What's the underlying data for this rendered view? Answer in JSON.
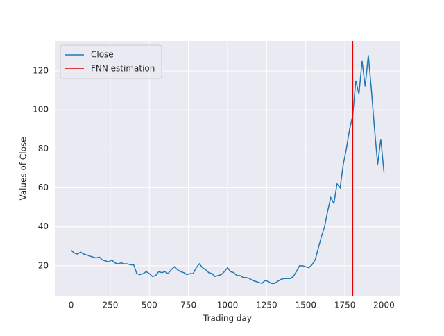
{
  "chart_data": {
    "type": "line",
    "x_label": "Trading day",
    "y_label": "Values of Close",
    "x": [
      0,
      20,
      40,
      60,
      80,
      100,
      120,
      140,
      160,
      180,
      200,
      220,
      240,
      260,
      280,
      300,
      320,
      340,
      360,
      380,
      400,
      420,
      440,
      460,
      480,
      500,
      520,
      540,
      560,
      580,
      600,
      620,
      640,
      660,
      680,
      700,
      720,
      740,
      760,
      780,
      800,
      820,
      840,
      860,
      880,
      900,
      920,
      940,
      960,
      980,
      1000,
      1020,
      1040,
      1060,
      1080,
      1100,
      1120,
      1140,
      1160,
      1180,
      1200,
      1220,
      1240,
      1260,
      1280,
      1300,
      1320,
      1340,
      1360,
      1380,
      1400,
      1420,
      1440,
      1460,
      1480,
      1500,
      1520,
      1540,
      1560,
      1580,
      1600,
      1620,
      1640,
      1660,
      1680,
      1700,
      1720,
      1740,
      1760,
      1780,
      1800,
      1820,
      1840,
      1860,
      1880,
      1900,
      1920,
      1940,
      1960,
      1980,
      2000
    ],
    "series": [
      {
        "name": "Close",
        "color": "#1f77b4",
        "values": [
          28,
          26.5,
          26,
          27,
          26,
          25.5,
          25,
          24.5,
          24,
          24.5,
          23,
          22.5,
          22,
          23,
          21.5,
          21,
          21.5,
          21,
          21,
          20.5,
          20.5,
          16,
          15.5,
          16,
          17,
          16,
          14.5,
          15,
          17,
          16.5,
          17,
          16,
          18,
          19.5,
          18,
          17,
          16.5,
          15.5,
          16,
          16,
          19,
          21,
          19,
          18,
          16.5,
          16,
          14.5,
          15,
          15.5,
          17,
          19,
          17,
          16.5,
          15,
          15,
          14,
          14,
          13.5,
          12.5,
          12,
          11.5,
          11,
          12.5,
          12,
          11,
          11,
          12,
          13,
          13.5,
          13.5,
          13.5,
          14.5,
          17,
          20,
          20,
          19.5,
          19,
          20.5,
          23,
          29,
          35,
          40,
          48,
          55,
          52,
          62,
          60,
          72,
          80,
          90,
          97,
          115,
          108,
          125,
          112,
          128,
          110,
          90,
          72,
          85,
          68
        ]
      }
    ],
    "vline": {
      "name": "FNN estimation",
      "color": "#e00000",
      "x": 1800
    },
    "xlim": [
      -100,
      2100
    ],
    "ylim": [
      4.3,
      135.3
    ],
    "xticks": [
      0,
      250,
      500,
      750,
      1000,
      1250,
      1500,
      1750,
      2000
    ],
    "yticks": [
      20,
      40,
      60,
      80,
      100,
      120
    ],
    "grid": true,
    "legend": "upper left"
  }
}
